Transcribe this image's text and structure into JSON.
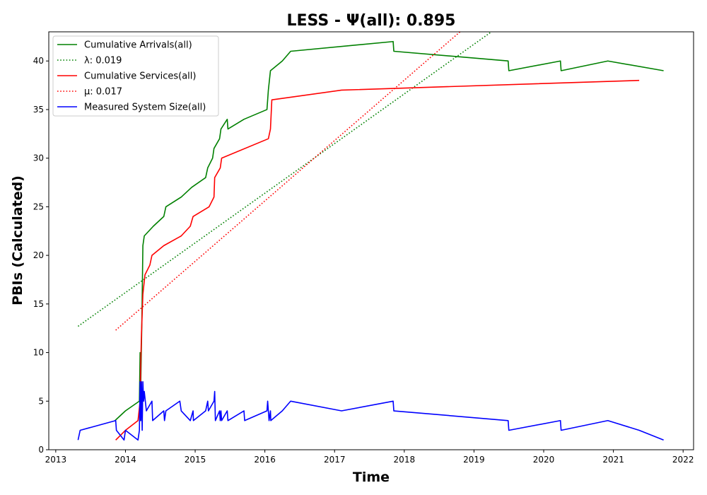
{
  "chart_data": {
    "type": "line",
    "title": "LESS -  Ψ(all): 0.895",
    "xlabel": "Time",
    "ylabel": "PBIs (Calculated)",
    "xlim": [
      2012.9,
      2022.15
    ],
    "ylim": [
      0,
      43
    ],
    "x_ticks": [
      2013,
      2014,
      2015,
      2016,
      2017,
      2018,
      2019,
      2020,
      2021,
      2022
    ],
    "y_ticks": [
      0,
      5,
      10,
      15,
      20,
      25,
      30,
      35,
      40
    ],
    "grid": false,
    "legend_position": "upper-left",
    "series": [
      {
        "name": "Cumulative Arrivals(all)",
        "style": "solid",
        "color": "#008000",
        "points": [
          [
            2013.85,
            3
          ],
          [
            2014.0,
            4
          ],
          [
            2014.2,
            5
          ],
          [
            2014.21,
            10
          ],
          [
            2014.215,
            3
          ],
          [
            2014.22,
            7
          ],
          [
            2014.235,
            13
          ],
          [
            2014.25,
            21
          ],
          [
            2014.27,
            22
          ],
          [
            2014.4,
            23
          ],
          [
            2014.55,
            24
          ],
          [
            2014.58,
            25
          ],
          [
            2014.8,
            26
          ],
          [
            2014.95,
            27
          ],
          [
            2015.15,
            28
          ],
          [
            2015.18,
            29
          ],
          [
            2015.25,
            30
          ],
          [
            2015.27,
            31
          ],
          [
            2015.35,
            32
          ],
          [
            2015.37,
            33
          ],
          [
            2015.46,
            34
          ],
          [
            2015.47,
            33
          ],
          [
            2015.7,
            34
          ],
          [
            2016.03,
            35
          ],
          [
            2016.05,
            37
          ],
          [
            2016.08,
            39
          ],
          [
            2016.25,
            40
          ],
          [
            2016.37,
            41
          ],
          [
            2017.84,
            42
          ],
          [
            2017.85,
            41
          ],
          [
            2019.49,
            40
          ],
          [
            2019.5,
            39
          ],
          [
            2020.24,
            40
          ],
          [
            2020.25,
            39
          ],
          [
            2020.92,
            40
          ],
          [
            2021.72,
            39
          ]
        ]
      },
      {
        "name": "λ: 0.019",
        "style": "dotted",
        "color": "#008000",
        "points": [
          [
            2013.32,
            12.7
          ],
          [
            2019.25,
            43
          ]
        ]
      },
      {
        "name": "Cumulative Services(all)",
        "style": "solid",
        "color": "#ff0000",
        "points": [
          [
            2013.86,
            1
          ],
          [
            2014.0,
            2
          ],
          [
            2014.18,
            3
          ],
          [
            2014.21,
            5
          ],
          [
            2014.22,
            9
          ],
          [
            2014.23,
            12
          ],
          [
            2014.25,
            16
          ],
          [
            2014.28,
            18
          ],
          [
            2014.35,
            19
          ],
          [
            2014.38,
            20
          ],
          [
            2014.55,
            21
          ],
          [
            2014.8,
            22
          ],
          [
            2014.93,
            23
          ],
          [
            2014.97,
            24
          ],
          [
            2015.2,
            25
          ],
          [
            2015.27,
            26
          ],
          [
            2015.28,
            28
          ],
          [
            2015.36,
            29
          ],
          [
            2015.38,
            30
          ],
          [
            2016.05,
            32
          ],
          [
            2016.08,
            33
          ],
          [
            2016.1,
            36
          ],
          [
            2017.1,
            37
          ],
          [
            2021.37,
            38
          ]
        ]
      },
      {
        "name": "μ: 0.017",
        "style": "dotted",
        "color": "#ff0000",
        "points": [
          [
            2013.86,
            12.3
          ],
          [
            2018.8,
            43
          ]
        ]
      },
      {
        "name": "Measured System Size(all)",
        "style": "solid",
        "color": "#0000ff",
        "points": [
          [
            2013.32,
            1
          ],
          [
            2013.35,
            2
          ],
          [
            2013.86,
            3
          ],
          [
            2013.87,
            2
          ],
          [
            2013.98,
            1
          ],
          [
            2014.0,
            2
          ],
          [
            2014.18,
            1
          ],
          [
            2014.2,
            2
          ],
          [
            2014.21,
            7
          ],
          [
            2014.22,
            3
          ],
          [
            2014.23,
            7
          ],
          [
            2014.24,
            2
          ],
          [
            2014.25,
            7
          ],
          [
            2014.26,
            5
          ],
          [
            2014.27,
            6
          ],
          [
            2014.3,
            4
          ],
          [
            2014.38,
            5
          ],
          [
            2014.39,
            3
          ],
          [
            2014.55,
            4
          ],
          [
            2014.56,
            3
          ],
          [
            2014.58,
            4
          ],
          [
            2014.78,
            5
          ],
          [
            2014.8,
            4
          ],
          [
            2014.93,
            3
          ],
          [
            2014.97,
            4
          ],
          [
            2014.975,
            3
          ],
          [
            2015.15,
            4
          ],
          [
            2015.18,
            5
          ],
          [
            2015.19,
            4
          ],
          [
            2015.27,
            5
          ],
          [
            2015.28,
            6
          ],
          [
            2015.29,
            3
          ],
          [
            2015.35,
            4
          ],
          [
            2015.36,
            3
          ],
          [
            2015.37,
            4
          ],
          [
            2015.38,
            3
          ],
          [
            2015.46,
            4
          ],
          [
            2015.47,
            3
          ],
          [
            2015.7,
            4
          ],
          [
            2015.71,
            3
          ],
          [
            2016.03,
            4
          ],
          [
            2016.04,
            5
          ],
          [
            2016.06,
            3
          ],
          [
            2016.08,
            4
          ],
          [
            2016.085,
            3
          ],
          [
            2016.25,
            4
          ],
          [
            2016.37,
            5
          ],
          [
            2017.1,
            4
          ],
          [
            2017.84,
            5
          ],
          [
            2017.85,
            4
          ],
          [
            2019.49,
            3
          ],
          [
            2019.5,
            2
          ],
          [
            2020.24,
            3
          ],
          [
            2020.25,
            2
          ],
          [
            2020.92,
            3
          ],
          [
            2021.37,
            2
          ],
          [
            2021.72,
            1
          ]
        ]
      }
    ]
  }
}
